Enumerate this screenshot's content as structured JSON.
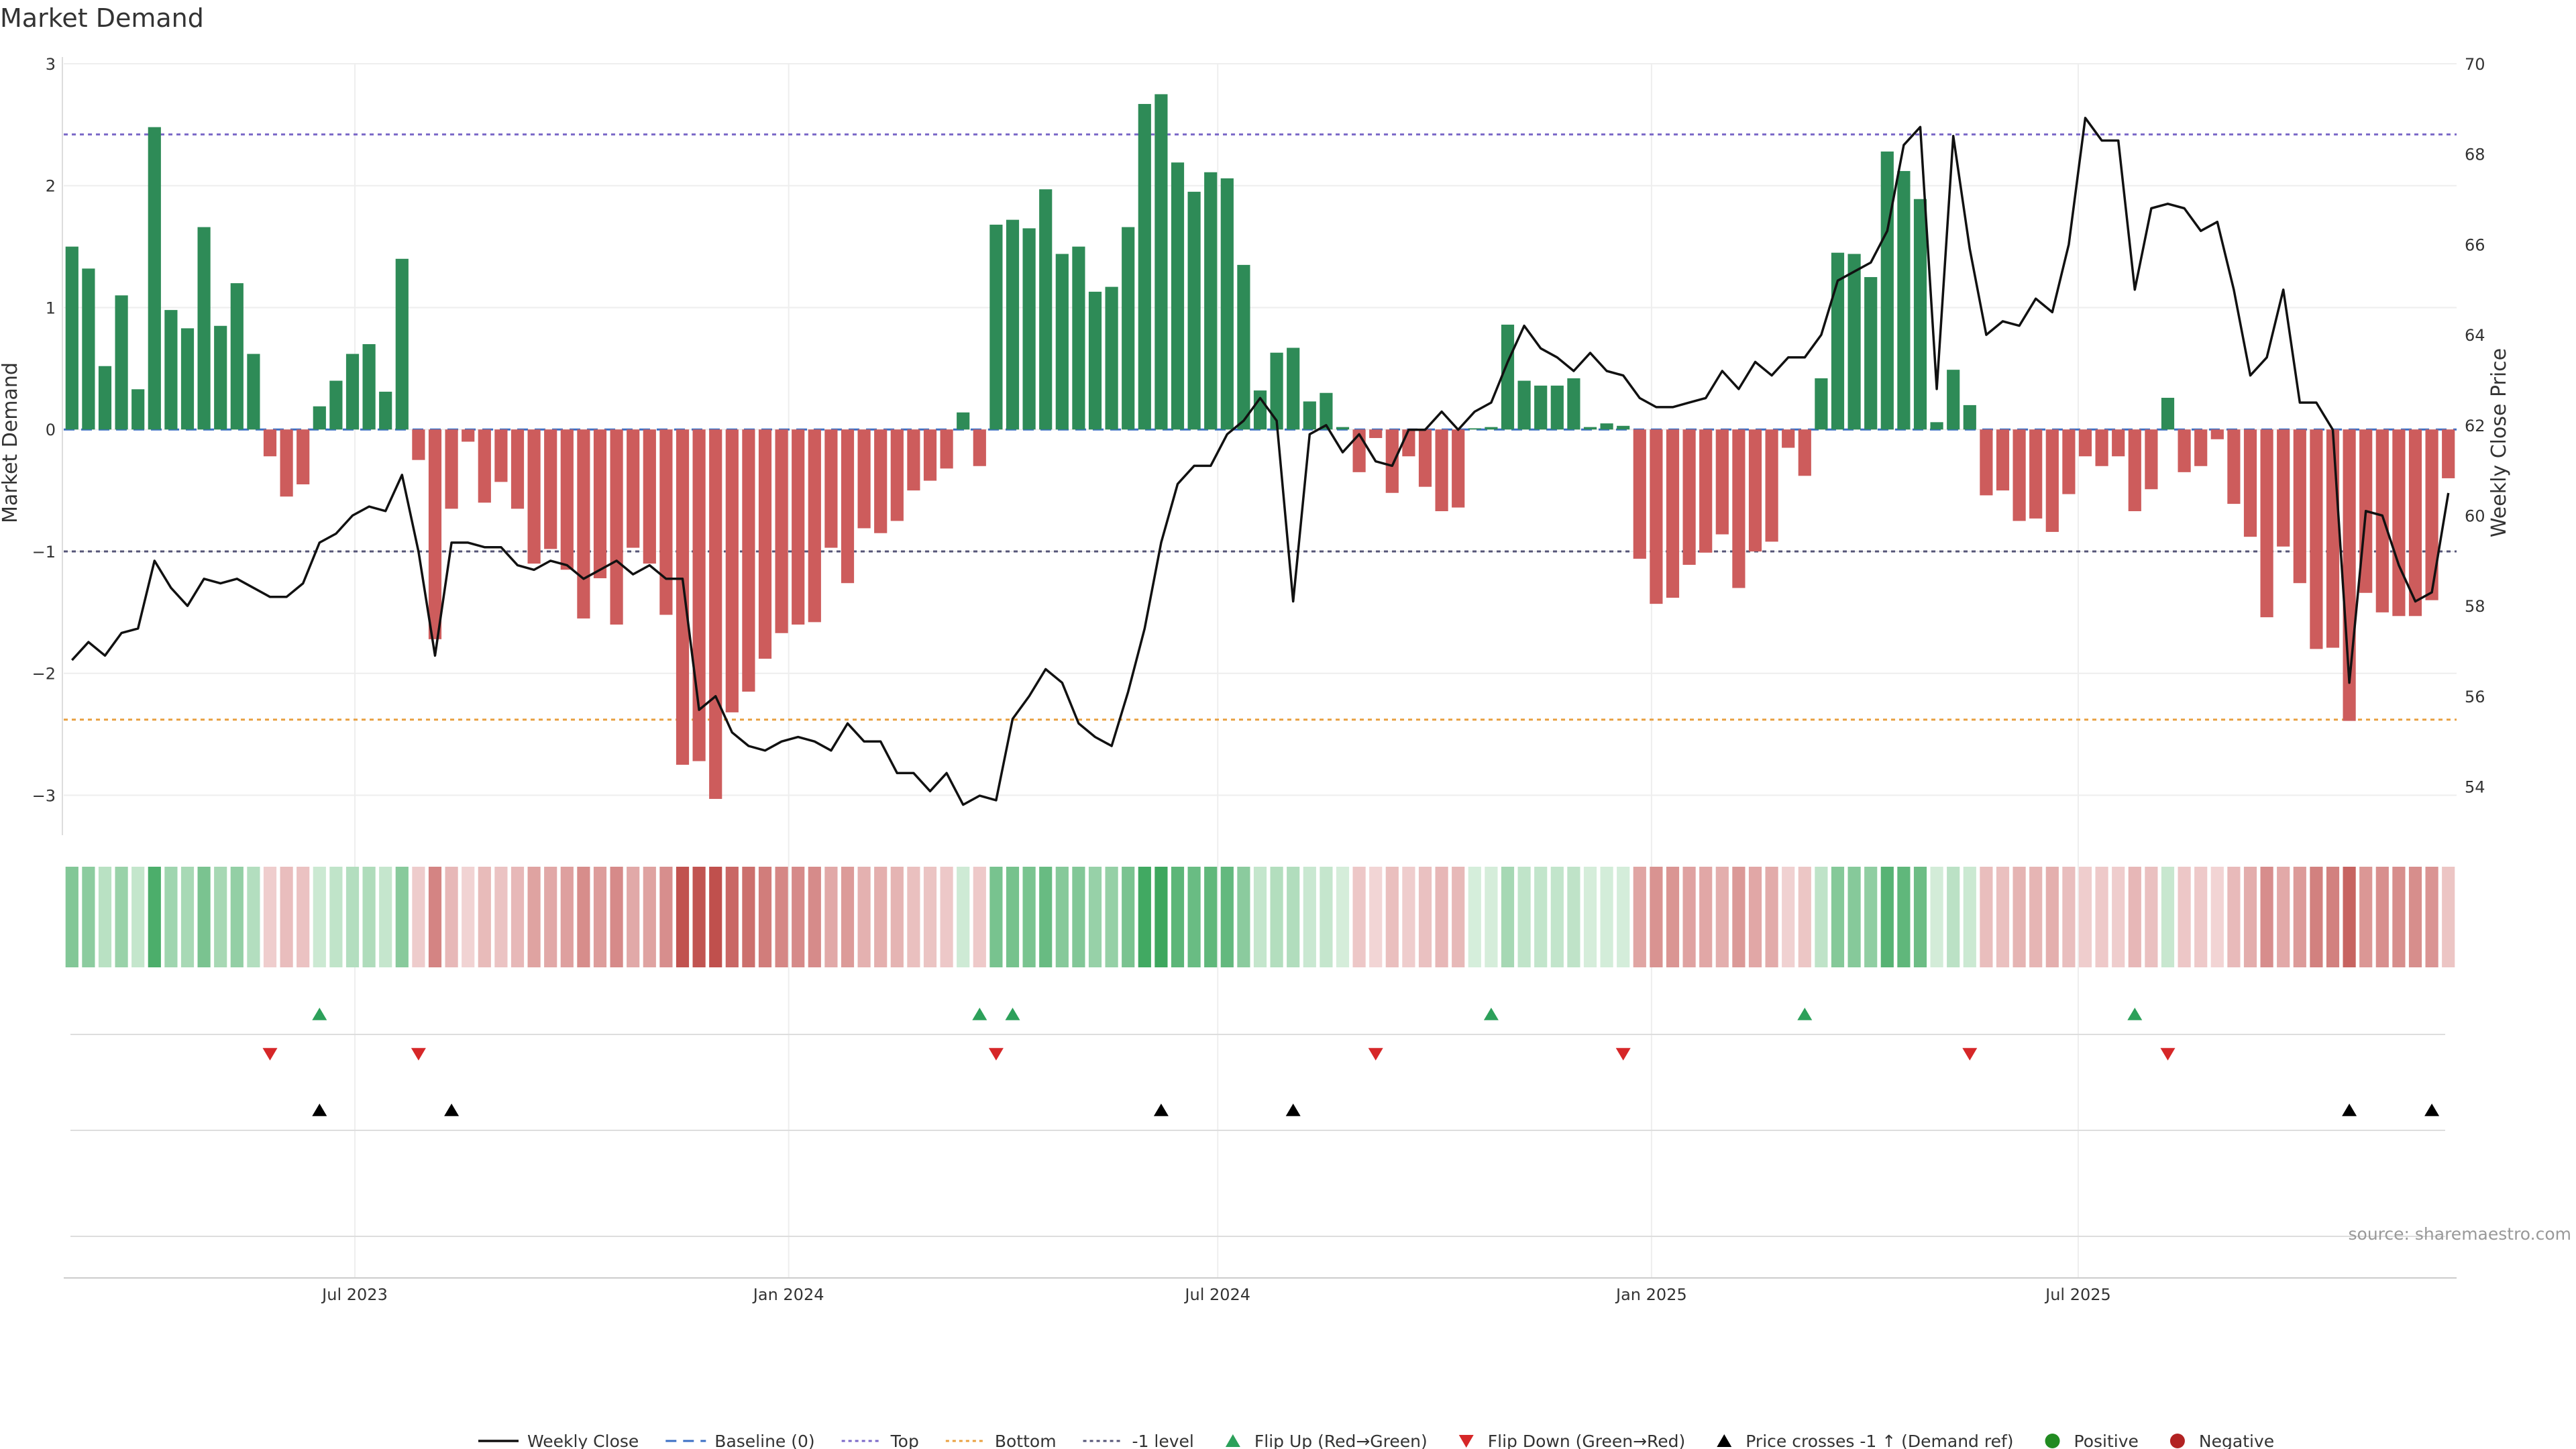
{
  "chart_data": {
    "type": "bar",
    "title": "Market Demand",
    "ylabel_left": "Market Demand",
    "ylabel_right": "Weekly Close Price",
    "ylim_left": [
      -3.3,
      3.0
    ],
    "ylim_right": [
      53,
      70
    ],
    "yticks_left": [
      3,
      2,
      1,
      0,
      -1,
      -2,
      -3
    ],
    "yticks_left_labels": [
      "3",
      "2",
      "1",
      "0",
      "−1",
      "−2",
      "−3"
    ],
    "yticks_right": [
      70,
      68,
      66,
      64,
      62,
      60,
      58,
      56,
      54
    ],
    "yticks_right_labels": [
      "70",
      "68",
      "66",
      "64",
      "62",
      "60",
      "58",
      "56",
      "54"
    ],
    "x_start": "2023-03-03",
    "x_end": "2025-10-31",
    "x_step_days": 7,
    "xticks": [
      {
        "date": "2023-07-01",
        "label": "Jul 2023"
      },
      {
        "date": "2024-01-01",
        "label": "Jan 2024"
      },
      {
        "date": "2024-07-01",
        "label": "Jul 2024"
      },
      {
        "date": "2025-01-01",
        "label": "Jan 2025"
      },
      {
        "date": "2025-07-01",
        "label": "Jul 2025"
      }
    ],
    "reference_lines": [
      {
        "name": "Top",
        "value": 2.42,
        "color": "#7b68c8",
        "dash": "6,6"
      },
      {
        "name": "-1 level",
        "value": -1.0,
        "color": "#555577",
        "dash": "6,6"
      },
      {
        "name": "Bottom",
        "value": -2.38,
        "color": "#e8a040",
        "dash": "6,6"
      },
      {
        "name": "Baseline (0)",
        "value": 0,
        "color": "#3b6fc4",
        "dash": "16,10"
      }
    ],
    "colors": {
      "positive_bar": "#2e8b57",
      "negative_bar": "#cd5c5c",
      "price_line": "#111111",
      "flip_up": "#2ca05a",
      "flip_down": "#d62728",
      "cross": "#000000",
      "positive_dot": "#228b22",
      "negative_dot": "#b22222"
    },
    "series": [
      {
        "name": "Market Demand",
        "values": [
          1.5,
          1.32,
          0.52,
          1.1,
          0.33,
          2.48,
          0.98,
          0.83,
          1.66,
          0.85,
          1.2,
          0.62,
          -0.22,
          -0.55,
          -0.45,
          0.19,
          0.4,
          0.62,
          0.7,
          0.31,
          1.4,
          -0.25,
          -1.72,
          -0.65,
          -0.1,
          -0.6,
          -0.43,
          -0.65,
          -1.1,
          -0.98,
          -1.15,
          -1.55,
          -1.22,
          -1.6,
          -0.97,
          -1.1,
          -1.52,
          -2.75,
          -2.72,
          -3.03,
          -2.32,
          -2.15,
          -1.88,
          -1.67,
          -1.6,
          -1.58,
          -0.97,
          -1.26,
          -0.81,
          -0.85,
          -0.75,
          -0.5,
          -0.42,
          -0.32,
          0.14,
          -0.3,
          1.68,
          1.72,
          1.65,
          1.97,
          1.44,
          1.5,
          1.13,
          1.17,
          1.66,
          2.67,
          2.75,
          2.19,
          1.95,
          2.11,
          2.06,
          1.35,
          0.32,
          0.63,
          0.67,
          0.23,
          0.3,
          0.02,
          -0.35,
          -0.07,
          -0.52,
          -0.22,
          -0.47,
          -0.67,
          -0.64,
          0.01,
          0.02,
          0.86,
          0.4,
          0.36,
          0.36,
          0.42,
          0.02,
          0.05,
          0.03,
          -1.06,
          -1.43,
          -1.38,
          -1.11,
          -1.01,
          -0.86,
          -1.3,
          -1.0,
          -0.92,
          -0.15,
          -0.38,
          0.42,
          1.45,
          1.44,
          1.25,
          2.28,
          2.12,
          1.89,
          0.06,
          0.49,
          0.2,
          -0.54,
          -0.5,
          -0.75,
          -0.73,
          -0.84,
          -0.53,
          -0.22,
          -0.3,
          -0.22,
          -0.67,
          -0.49,
          0.26,
          -0.35,
          -0.3,
          -0.08,
          -0.61,
          -0.88,
          -1.54,
          -0.96,
          -1.26,
          -1.8,
          -1.79,
          -2.39,
          -1.34,
          -1.5,
          -1.53,
          -1.53,
          -1.4,
          -0.4
        ]
      },
      {
        "name": "Weekly Close",
        "values": [
          56.8,
          57.2,
          56.9,
          57.4,
          57.5,
          59.0,
          58.4,
          58.0,
          58.6,
          58.5,
          58.6,
          58.4,
          58.2,
          58.2,
          58.5,
          59.4,
          59.6,
          60.0,
          60.2,
          60.1,
          60.9,
          59.2,
          56.9,
          59.4,
          59.4,
          59.3,
          59.3,
          58.9,
          58.8,
          59.0,
          58.9,
          58.6,
          58.8,
          59.0,
          58.7,
          58.9,
          58.6,
          58.6,
          55.7,
          56.0,
          55.2,
          54.9,
          54.8,
          55.0,
          55.1,
          55.0,
          54.8,
          55.4,
          55.0,
          55.0,
          54.3,
          54.3,
          53.9,
          54.3,
          53.6,
          53.8,
          53.7,
          55.5,
          56.0,
          56.6,
          56.3,
          55.4,
          55.1,
          54.9,
          56.1,
          57.5,
          59.4,
          60.7,
          61.1,
          61.1,
          61.8,
          62.1,
          62.6,
          62.1,
          58.1,
          61.8,
          62.0,
          61.4,
          61.8,
          61.2,
          61.1,
          61.9,
          61.9,
          62.3,
          61.9,
          62.3,
          62.5,
          63.4,
          64.2,
          63.7,
          63.5,
          63.2,
          63.6,
          63.2,
          63.1,
          62.6,
          62.4,
          62.4,
          62.5,
          62.6,
          63.2,
          62.8,
          63.4,
          63.1,
          63.5,
          63.5,
          64.0,
          65.2,
          65.4,
          65.6,
          66.3,
          68.2,
          68.6,
          62.8,
          68.4,
          65.9,
          64.0,
          64.3,
          64.2,
          64.8,
          64.5,
          66.0,
          68.8,
          68.3,
          68.3,
          65.0,
          66.8,
          66.9,
          66.8,
          66.3,
          66.5,
          65.0,
          63.1,
          63.5,
          65.0,
          62.5,
          62.5,
          61.9,
          56.3,
          60.1,
          60.0,
          58.9,
          58.1,
          58.3,
          60.5
        ]
      }
    ],
    "flip_up_idx": [
      15,
      55,
      57,
      86,
      105,
      125
    ],
    "flip_down_idx": [
      12,
      21,
      56,
      79,
      94,
      115,
      127
    ],
    "cross_idx": [
      15,
      23,
      66,
      74,
      138,
      143
    ],
    "legend": [
      {
        "kind": "line",
        "label": "Weekly Close",
        "color": "#111111"
      },
      {
        "kind": "dashed",
        "label": "Baseline (0)",
        "color": "#3b6fc4"
      },
      {
        "kind": "dotted",
        "label": "Top",
        "color": "#7b68c8"
      },
      {
        "kind": "dotted",
        "label": "Bottom",
        "color": "#e8a040"
      },
      {
        "kind": "dotted",
        "label": "-1 level",
        "color": "#555577"
      },
      {
        "kind": "tri-up",
        "label": "Flip Up (Red→Green)",
        "color": "#2ca05a"
      },
      {
        "kind": "tri-down",
        "label": "Flip Down (Green→Red)",
        "color": "#d62728"
      },
      {
        "kind": "tri-up",
        "label": "Price crosses -1 ↑ (Demand ref)",
        "color": "#000000"
      },
      {
        "kind": "dot",
        "label": "Positive",
        "color": "#228b22"
      },
      {
        "kind": "dot",
        "label": "Negative",
        "color": "#b22222"
      }
    ],
    "source": "source: sharemaestro.com"
  }
}
